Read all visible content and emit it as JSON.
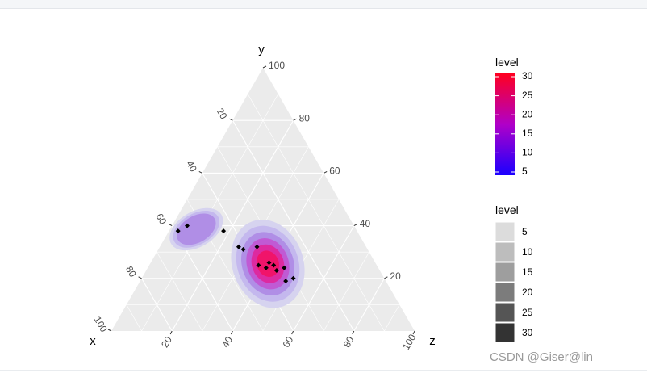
{
  "chart_data": {
    "type": "ternary-density",
    "axes": {
      "x": {
        "label": "x",
        "ticks": [
          20,
          40,
          60,
          80,
          100
        ]
      },
      "y": {
        "label": "y",
        "ticks": [
          20,
          40,
          60,
          80,
          100
        ]
      },
      "z": {
        "label": "z",
        "ticks": [
          20,
          40,
          60,
          80,
          100
        ]
      }
    },
    "grid": true,
    "points": [
      {
        "x": 55,
        "y": 40,
        "z": 5
      },
      {
        "x": 59,
        "y": 38,
        "z": 3
      },
      {
        "x": 44,
        "y": 38,
        "z": 18
      },
      {
        "x": 42,
        "y": 32,
        "z": 26
      },
      {
        "x": 41,
        "y": 31,
        "z": 28
      },
      {
        "x": 36,
        "y": 32,
        "z": 32
      },
      {
        "x": 35,
        "y": 26,
        "z": 39
      },
      {
        "x": 34,
        "y": 25,
        "z": 41
      },
      {
        "x": 31,
        "y": 24,
        "z": 45
      },
      {
        "x": 30,
        "y": 20,
        "z": 50
      },
      {
        "x": 37,
        "y": 24,
        "z": 39
      },
      {
        "x": 39,
        "y": 25,
        "z": 36
      },
      {
        "x": 34,
        "y": 23,
        "z": 43
      },
      {
        "x": 33,
        "y": 19,
        "z": 48
      }
    ],
    "legend_fill": {
      "title": "level",
      "range": [
        5,
        30
      ],
      "ticks": [
        5,
        10,
        15,
        20,
        25,
        30
      ],
      "colors": [
        "#1a00ff",
        "#ff0020"
      ],
      "placement": "right"
    },
    "legend_alpha": {
      "title": "level",
      "entries": [
        5,
        10,
        15,
        20,
        25,
        30
      ],
      "placement": "right"
    }
  },
  "watermark": "CSDN @Giser@lin"
}
